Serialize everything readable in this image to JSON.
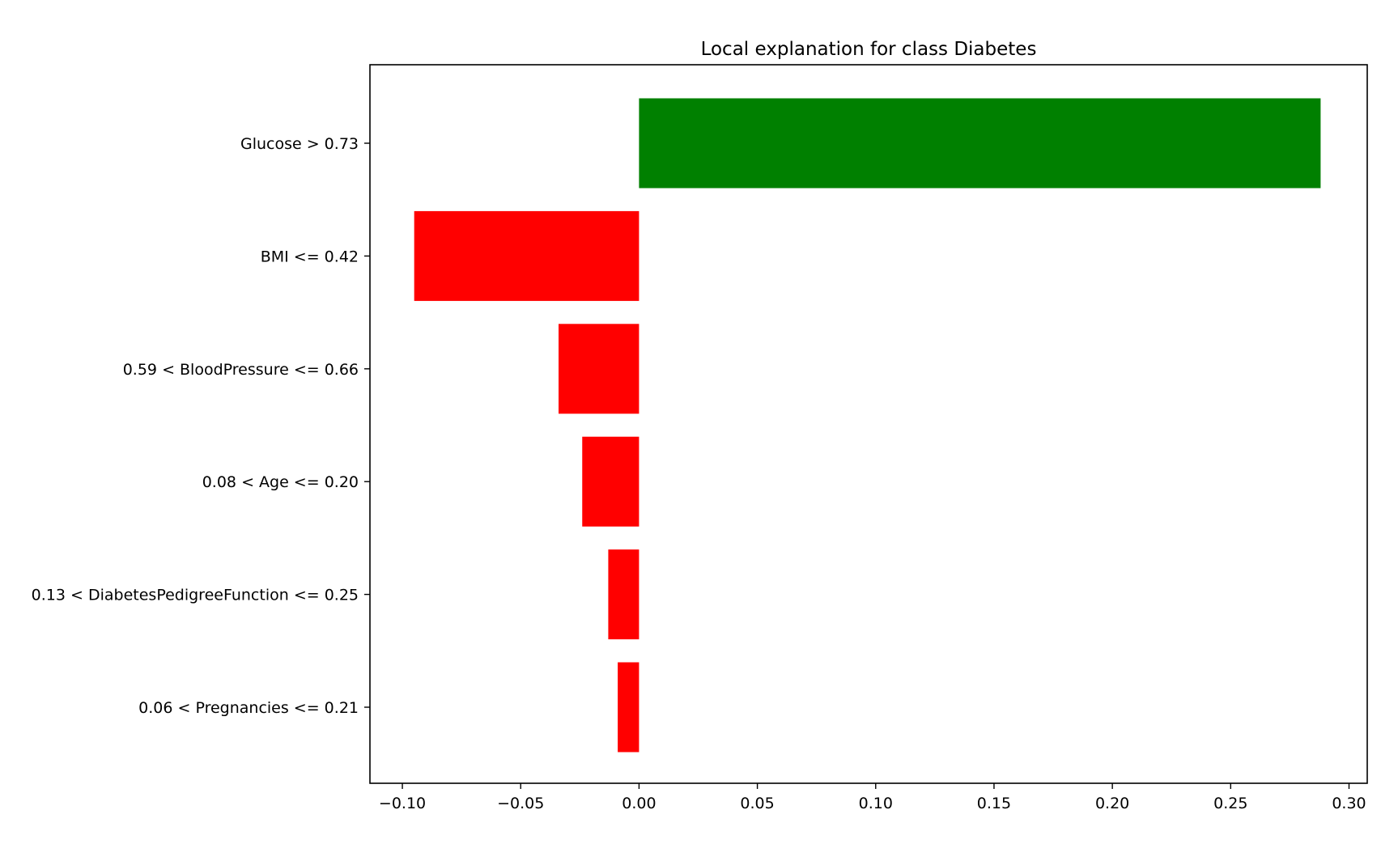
{
  "chart_data": {
    "type": "bar",
    "orientation": "horizontal",
    "title": "Local explanation for class Diabetes",
    "xlabel": "",
    "ylabel": "",
    "categories": [
      "Glucose > 0.73",
      "BMI <= 0.42",
      "0.59 < BloodPressure <= 0.66",
      "0.08 < Age <= 0.20",
      "0.13 < DiabetesPedigreeFunction <= 0.25",
      "0.06 < Pregnancies <= 0.21"
    ],
    "values": [
      0.288,
      -0.095,
      -0.034,
      -0.024,
      -0.013,
      -0.009
    ],
    "xlim": [
      -0.1137,
      0.3077
    ],
    "xticks": [
      -0.1,
      -0.05,
      0.0,
      0.05,
      0.1,
      0.15,
      0.2,
      0.25,
      0.3
    ],
    "xtick_labels": [
      "−0.10",
      "−0.05",
      "0.00",
      "0.05",
      "0.10",
      "0.15",
      "0.20",
      "0.25",
      "0.30"
    ],
    "colors": {
      "positive": "#008000",
      "negative": "#ff0000",
      "axes": "#000000",
      "background": "#ffffff"
    },
    "grid": false,
    "legend": "none"
  }
}
